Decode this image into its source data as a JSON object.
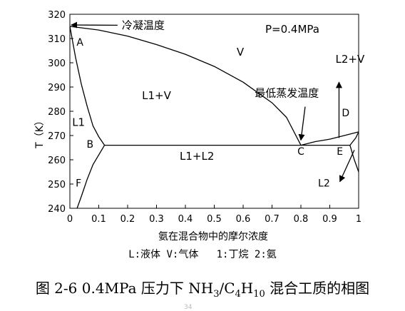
{
  "chart_data": {
    "type": "line",
    "pressure_label": "P=0.4MPa",
    "xlabel": "氨在混合物中的摩尔浓度",
    "ylabel": "T（K）",
    "xlim": [
      0,
      1
    ],
    "ylim": [
      240,
      320
    ],
    "x_ticks": [
      "0",
      "0.1",
      "0.2",
      "0.3",
      "0.4",
      "0.5",
      "0.6",
      "0.7",
      "0.8",
      "0.9",
      "1"
    ],
    "y_ticks": [
      "240",
      "250",
      "260",
      "270",
      "280",
      "290",
      "300",
      "310",
      "320"
    ],
    "series": [
      {
        "id": "dew-left",
        "points": [
          [
            0,
            315
          ],
          [
            0.1,
            313.5
          ],
          [
            0.2,
            311
          ],
          [
            0.3,
            307.5
          ],
          [
            0.4,
            303.5
          ],
          [
            0.5,
            298.5
          ],
          [
            0.6,
            292
          ],
          [
            0.7,
            283.5
          ],
          [
            0.75,
            277.5
          ],
          [
            0.8,
            266
          ]
        ]
      },
      {
        "id": "bubble-left",
        "points": [
          [
            0,
            315
          ],
          [
            0.02,
            302
          ],
          [
            0.04,
            291
          ],
          [
            0.06,
            282
          ],
          [
            0.08,
            274
          ],
          [
            0.1,
            269.5
          ],
          [
            0.12,
            266
          ]
        ]
      },
      {
        "id": "solubility-left",
        "points": [
          [
            0.12,
            266
          ],
          [
            0.08,
            258
          ],
          [
            0.06,
            252
          ],
          [
            0.04,
            245
          ],
          [
            0.025,
            240
          ]
        ]
      },
      {
        "id": "three-phase-line",
        "points": [
          [
            0.12,
            266
          ],
          [
            0.97,
            266
          ]
        ]
      },
      {
        "id": "dew-right",
        "points": [
          [
            0.8,
            266
          ],
          [
            0.85,
            267.5
          ],
          [
            0.9,
            268.5
          ],
          [
            0.95,
            270
          ],
          [
            1,
            271.5
          ]
        ]
      },
      {
        "id": "bubble-right",
        "points": [
          [
            0.97,
            266
          ],
          [
            0.99,
            269
          ],
          [
            1,
            271.5
          ]
        ]
      },
      {
        "id": "solubility-right",
        "points": [
          [
            0.97,
            266
          ],
          [
            0.985,
            260
          ],
          [
            1,
            255
          ]
        ]
      }
    ],
    "region_labels": [
      {
        "text": "V",
        "x": 0.59,
        "y": 303
      },
      {
        "text": "L1+V",
        "x": 0.3,
        "y": 285
      },
      {
        "text": "L1",
        "x": 0.03,
        "y": 274
      },
      {
        "text": "L1+L2",
        "x": 0.44,
        "y": 260
      },
      {
        "text": "L2+V",
        "x": 0.97,
        "y": 300
      }
    ],
    "point_labels": [
      {
        "text": "A",
        "x": 0.035,
        "y": 307
      },
      {
        "text": "B",
        "x": 0.07,
        "y": 265
      },
      {
        "text": "C",
        "x": 0.8,
        "y": 262
      },
      {
        "text": "D",
        "x": 0.955,
        "y": 278
      },
      {
        "text": "E",
        "x": 0.935,
        "y": 262
      },
      {
        "text": "F",
        "x": 0.03,
        "y": 249
      },
      {
        "text": "L2",
        "x": 0.88,
        "y": 249
      }
    ],
    "annotations": [
      {
        "text": "冷凝温度",
        "x": 0.18,
        "y": 314,
        "arrow_to": [
          0,
          315
        ]
      },
      {
        "text": "最低蒸发温度",
        "x": 0.64,
        "y": 286,
        "arrow_to": [
          0.795,
          267.5
        ]
      }
    ]
  },
  "legend_text": "L:液体 V:气体   1:丁烷 2:氨",
  "caption_prefix": "图 2-6 0.4MPa 压力下 NH",
  "caption_sub1": "3",
  "caption_mid": "/C",
  "caption_sub2": "4",
  "caption_h": "H",
  "caption_sub3": "10",
  "caption_suffix": " 混合工质的相图",
  "page_number": "34"
}
